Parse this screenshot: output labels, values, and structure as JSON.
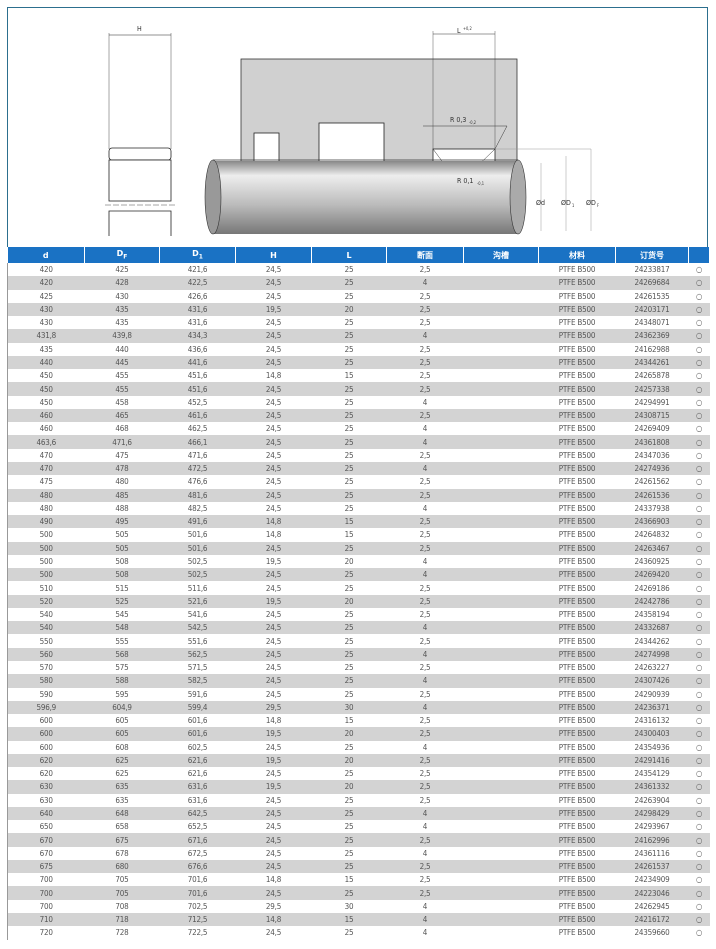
{
  "figure": {
    "dim_H": "H",
    "dim_L": "L",
    "dim_L_tol": "+0,2",
    "r_top": "R 0,3",
    "r_top_tol": "-0,2",
    "r_bot": "R 0,1",
    "r_bot_tol": "-0,1",
    "d": "Ød",
    "d1": "ØD",
    "d1_sub": "1",
    "df": "ØD",
    "df_sub": "F"
  },
  "table": {
    "headers": [
      {
        "t": "d",
        "s": ""
      },
      {
        "t": "D",
        "s": "F"
      },
      {
        "t": "D",
        "s": "1"
      },
      {
        "t": "H",
        "s": ""
      },
      {
        "t": "L",
        "s": ""
      },
      {
        "t": "断面",
        "s": ""
      },
      {
        "t": "沟槽",
        "s": ""
      },
      {
        "t": "材料",
        "s": ""
      },
      {
        "t": "订货号",
        "s": ""
      },
      {
        "t": "",
        "s": ""
      }
    ],
    "avail_symbol": "○",
    "rows": [
      [
        "420",
        "425",
        "421,6",
        "24,5",
        "25",
        "2,5",
        "",
        "PTFE B500",
        "24233817"
      ],
      [
        "420",
        "428",
        "422,5",
        "24,5",
        "25",
        "4",
        "",
        "PTFE B500",
        "24269684"
      ],
      [
        "425",
        "430",
        "426,6",
        "24,5",
        "25",
        "2,5",
        "",
        "PTFE B500",
        "24261535"
      ],
      [
        "430",
        "435",
        "431,6",
        "19,5",
        "20",
        "2,5",
        "",
        "PTFE B500",
        "24203171"
      ],
      [
        "430",
        "435",
        "431,6",
        "24,5",
        "25",
        "2,5",
        "",
        "PTFE B500",
        "24348071"
      ],
      [
        "431,8",
        "439,8",
        "434,3",
        "24,5",
        "25",
        "4",
        "",
        "PTFE B500",
        "24362369"
      ],
      [
        "435",
        "440",
        "436,6",
        "24,5",
        "25",
        "2,5",
        "",
        "PTFE B500",
        "24162988"
      ],
      [
        "440",
        "445",
        "441,6",
        "24,5",
        "25",
        "2,5",
        "",
        "PTFE B500",
        "24344261"
      ],
      [
        "450",
        "455",
        "451,6",
        "14,8",
        "15",
        "2,5",
        "",
        "PTFE B500",
        "24265878"
      ],
      [
        "450",
        "455",
        "451,6",
        "24,5",
        "25",
        "2,5",
        "",
        "PTFE B500",
        "24257338"
      ],
      [
        "450",
        "458",
        "452,5",
        "24,5",
        "25",
        "4",
        "",
        "PTFE B500",
        "24294991"
      ],
      [
        "460",
        "465",
        "461,6",
        "24,5",
        "25",
        "2,5",
        "",
        "PTFE B500",
        "24308715"
      ],
      [
        "460",
        "468",
        "462,5",
        "24,5",
        "25",
        "4",
        "",
        "PTFE B500",
        "24269409"
      ],
      [
        "463,6",
        "471,6",
        "466,1",
        "24,5",
        "25",
        "4",
        "",
        "PTFE B500",
        "24361808"
      ],
      [
        "470",
        "475",
        "471,6",
        "24,5",
        "25",
        "2,5",
        "",
        "PTFE B500",
        "24347036"
      ],
      [
        "470",
        "478",
        "472,5",
        "24,5",
        "25",
        "4",
        "",
        "PTFE B500",
        "24274936"
      ],
      [
        "475",
        "480",
        "476,6",
        "24,5",
        "25",
        "2,5",
        "",
        "PTFE B500",
        "24261562"
      ],
      [
        "480",
        "485",
        "481,6",
        "24,5",
        "25",
        "2,5",
        "",
        "PTFE B500",
        "24261536"
      ],
      [
        "480",
        "488",
        "482,5",
        "24,5",
        "25",
        "4",
        "",
        "PTFE B500",
        "24337938"
      ],
      [
        "490",
        "495",
        "491,6",
        "14,8",
        "15",
        "2,5",
        "",
        "PTFE B500",
        "24366903"
      ],
      [
        "500",
        "505",
        "501,6",
        "14,8",
        "15",
        "2,5",
        "",
        "PTFE B500",
        "24264832"
      ],
      [
        "500",
        "505",
        "501,6",
        "24,5",
        "25",
        "2,5",
        "",
        "PTFE B500",
        "24263467"
      ],
      [
        "500",
        "508",
        "502,5",
        "19,5",
        "20",
        "4",
        "",
        "PTFE B500",
        "24360925"
      ],
      [
        "500",
        "508",
        "502,5",
        "24,5",
        "25",
        "4",
        "",
        "PTFE B500",
        "24269420"
      ],
      [
        "510",
        "515",
        "511,6",
        "24,5",
        "25",
        "2,5",
        "",
        "PTFE B500",
        "24269186"
      ],
      [
        "520",
        "525",
        "521,6",
        "19,5",
        "20",
        "2,5",
        "",
        "PTFE B500",
        "24242786"
      ],
      [
        "540",
        "545",
        "541,6",
        "24,5",
        "25",
        "2,5",
        "",
        "PTFE B500",
        "24358194"
      ],
      [
        "540",
        "548",
        "542,5",
        "24,5",
        "25",
        "4",
        "",
        "PTFE B500",
        "24332687"
      ],
      [
        "550",
        "555",
        "551,6",
        "24,5",
        "25",
        "2,5",
        "",
        "PTFE B500",
        "24344262"
      ],
      [
        "560",
        "568",
        "562,5",
        "24,5",
        "25",
        "4",
        "",
        "PTFE B500",
        "24274998"
      ],
      [
        "570",
        "575",
        "571,5",
        "24,5",
        "25",
        "2,5",
        "",
        "PTFE B500",
        "24263227"
      ],
      [
        "580",
        "588",
        "582,5",
        "24,5",
        "25",
        "4",
        "",
        "PTFE B500",
        "24307426"
      ],
      [
        "590",
        "595",
        "591,6",
        "24,5",
        "25",
        "2,5",
        "",
        "PTFE B500",
        "24290939"
      ],
      [
        "596,9",
        "604,9",
        "599,4",
        "29,5",
        "30",
        "4",
        "",
        "PTFE B500",
        "24236371"
      ],
      [
        "600",
        "605",
        "601,6",
        "14,8",
        "15",
        "2,5",
        "",
        "PTFE B500",
        "24316132"
      ],
      [
        "600",
        "605",
        "601,6",
        "19,5",
        "20",
        "2,5",
        "",
        "PTFE B500",
        "24300403"
      ],
      [
        "600",
        "608",
        "602,5",
        "24,5",
        "25",
        "4",
        "",
        "PTFE B500",
        "24354936"
      ],
      [
        "620",
        "625",
        "621,6",
        "19,5",
        "20",
        "2,5",
        "",
        "PTFE B500",
        "24291416"
      ],
      [
        "620",
        "625",
        "621,6",
        "24,5",
        "25",
        "2,5",
        "",
        "PTFE B500",
        "24354129"
      ],
      [
        "630",
        "635",
        "631,6",
        "19,5",
        "20",
        "2,5",
        "",
        "PTFE B500",
        "24361332"
      ],
      [
        "630",
        "635",
        "631,6",
        "24,5",
        "25",
        "2,5",
        "",
        "PTFE B500",
        "24263904"
      ],
      [
        "640",
        "648",
        "642,5",
        "24,5",
        "25",
        "4",
        "",
        "PTFE B500",
        "24298429"
      ],
      [
        "650",
        "658",
        "652,5",
        "24,5",
        "25",
        "4",
        "",
        "PTFE B500",
        "24293967"
      ],
      [
        "670",
        "675",
        "671,6",
        "24,5",
        "25",
        "2,5",
        "",
        "PTFE B500",
        "24162996"
      ],
      [
        "670",
        "678",
        "672,5",
        "24,5",
        "25",
        "4",
        "",
        "PTFE B500",
        "24361116"
      ],
      [
        "675",
        "680",
        "676,6",
        "24,5",
        "25",
        "2,5",
        "",
        "PTFE B500",
        "24261537"
      ],
      [
        "700",
        "705",
        "701,6",
        "14,8",
        "15",
        "2,5",
        "",
        "PTFE B500",
        "24234909"
      ],
      [
        "700",
        "705",
        "701,6",
        "24,5",
        "25",
        "2,5",
        "",
        "PTFE B500",
        "24223046"
      ],
      [
        "700",
        "708",
        "702,5",
        "29,5",
        "30",
        "4",
        "",
        "PTFE B500",
        "24262945"
      ],
      [
        "710",
        "718",
        "712,5",
        "14,8",
        "15",
        "4",
        "",
        "PTFE B500",
        "24216172"
      ],
      [
        "720",
        "728",
        "722,5",
        "24,5",
        "25",
        "4",
        "",
        "PTFE B500",
        "24359660"
      ]
    ]
  },
  "colors": {
    "header_bg": "#1a72c4",
    "alt_row": "#d3d3d3",
    "frame": "#2c6f8e"
  }
}
